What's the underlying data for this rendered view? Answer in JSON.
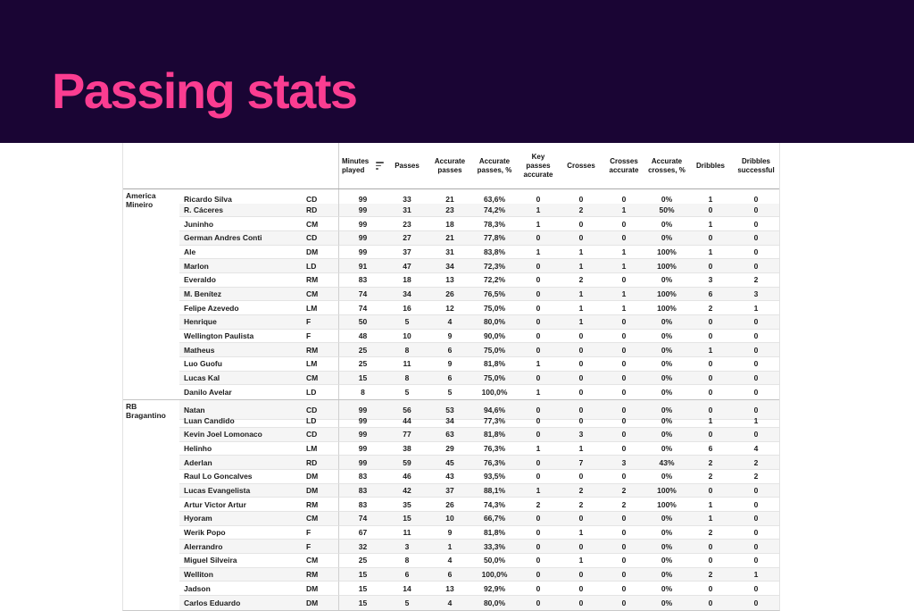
{
  "slide": {
    "title": "Passing stats"
  },
  "colors": {
    "band": "#1a0534",
    "pink": "#fb3d91",
    "row_alt": "#f5f5f5"
  },
  "table": {
    "columns": [
      {
        "label": "Minutes played",
        "sortable": true
      },
      {
        "label": "Passes"
      },
      {
        "label": "Accurate passes"
      },
      {
        "label": "Accurate passes, %"
      },
      {
        "label": "Key passes accurate"
      },
      {
        "label": "Crosses"
      },
      {
        "label": "Crosses accurate"
      },
      {
        "label": "Accurate crosses, %"
      },
      {
        "label": "Dribbles"
      },
      {
        "label": "Dribbles successful"
      }
    ],
    "stat_keys": [
      "minutes-played",
      "passes",
      "accurate-passes",
      "accurate-passes-pct",
      "key-passes-accurate",
      "crosses",
      "crosses-accurate",
      "accurate-crosses-pct",
      "dribbles",
      "dribbles-successful"
    ],
    "groups": [
      {
        "team": "America Mineiro",
        "players": [
          {
            "name": "Ricardo Silva",
            "pos": "CD",
            "stats": [
              "99",
              "33",
              "21",
              "63,6%",
              "0",
              "0",
              "0",
              "0%",
              "1",
              "0"
            ]
          },
          {
            "name": "R. Cáceres",
            "pos": "RD",
            "stats": [
              "99",
              "31",
              "23",
              "74,2%",
              "1",
              "2",
              "1",
              "50%",
              "0",
              "0"
            ]
          },
          {
            "name": "Juninho",
            "pos": "CM",
            "stats": [
              "99",
              "23",
              "18",
              "78,3%",
              "1",
              "0",
              "0",
              "0%",
              "1",
              "0"
            ]
          },
          {
            "name": "German Andres Conti",
            "pos": "CD",
            "stats": [
              "99",
              "27",
              "21",
              "77,8%",
              "0",
              "0",
              "0",
              "0%",
              "0",
              "0"
            ]
          },
          {
            "name": "Ale",
            "pos": "DM",
            "stats": [
              "99",
              "37",
              "31",
              "83,8%",
              "1",
              "1",
              "1",
              "100%",
              "1",
              "0"
            ]
          },
          {
            "name": "Marlon",
            "pos": "LD",
            "stats": [
              "91",
              "47",
              "34",
              "72,3%",
              "0",
              "1",
              "1",
              "100%",
              "0",
              "0"
            ]
          },
          {
            "name": "Everaldo",
            "pos": "RM",
            "stats": [
              "83",
              "18",
              "13",
              "72,2%",
              "0",
              "2",
              "0",
              "0%",
              "3",
              "2"
            ]
          },
          {
            "name": "M. Benítez",
            "pos": "CM",
            "stats": [
              "74",
              "34",
              "26",
              "76,5%",
              "0",
              "1",
              "1",
              "100%",
              "6",
              "3"
            ]
          },
          {
            "name": "Felipe Azevedo",
            "pos": "LM",
            "stats": [
              "74",
              "16",
              "12",
              "75,0%",
              "0",
              "1",
              "1",
              "100%",
              "2",
              "1"
            ]
          },
          {
            "name": "Henrique",
            "pos": "F",
            "stats": [
              "50",
              "5",
              "4",
              "80,0%",
              "0",
              "1",
              "0",
              "0%",
              "0",
              "0"
            ]
          },
          {
            "name": "Wellington Paulista",
            "pos": "F",
            "stats": [
              "48",
              "10",
              "9",
              "90,0%",
              "0",
              "0",
              "0",
              "0%",
              "0",
              "0"
            ]
          },
          {
            "name": "Matheus",
            "pos": "RM",
            "stats": [
              "25",
              "8",
              "6",
              "75,0%",
              "0",
              "0",
              "0",
              "0%",
              "1",
              "0"
            ]
          },
          {
            "name": "Luo Guofu",
            "pos": "LM",
            "stats": [
              "25",
              "11",
              "9",
              "81,8%",
              "1",
              "0",
              "0",
              "0%",
              "0",
              "0"
            ]
          },
          {
            "name": "Lucas Kal",
            "pos": "CM",
            "stats": [
              "15",
              "8",
              "6",
              "75,0%",
              "0",
              "0",
              "0",
              "0%",
              "0",
              "0"
            ]
          },
          {
            "name": "Danilo Avelar",
            "pos": "LD",
            "stats": [
              "8",
              "5",
              "5",
              "100,0%",
              "1",
              "0",
              "0",
              "0%",
              "0",
              "0"
            ]
          }
        ]
      },
      {
        "team": "RB Bragantino",
        "players": [
          {
            "name": "Natan",
            "pos": "CD",
            "stats": [
              "99",
              "56",
              "53",
              "94,6%",
              "0",
              "0",
              "0",
              "0%",
              "0",
              "0"
            ]
          },
          {
            "name": "Luan Candido",
            "pos": "LD",
            "stats": [
              "99",
              "44",
              "34",
              "77,3%",
              "0",
              "0",
              "0",
              "0%",
              "1",
              "1"
            ]
          },
          {
            "name": "Kevin Joel Lomonaco",
            "pos": "CD",
            "stats": [
              "99",
              "77",
              "63",
              "81,8%",
              "0",
              "3",
              "0",
              "0%",
              "0",
              "0"
            ]
          },
          {
            "name": "Helinho",
            "pos": "LM",
            "stats": [
              "99",
              "38",
              "29",
              "76,3%",
              "1",
              "1",
              "0",
              "0%",
              "6",
              "4"
            ]
          },
          {
            "name": "Aderlan",
            "pos": "RD",
            "stats": [
              "99",
              "59",
              "45",
              "76,3%",
              "0",
              "7",
              "3",
              "43%",
              "2",
              "2"
            ]
          },
          {
            "name": "Raul Lo Goncalves",
            "pos": "DM",
            "stats": [
              "83",
              "46",
              "43",
              "93,5%",
              "0",
              "0",
              "0",
              "0%",
              "2",
              "2"
            ]
          },
          {
            "name": "Lucas Evangelista",
            "pos": "DM",
            "stats": [
              "83",
              "42",
              "37",
              "88,1%",
              "1",
              "2",
              "2",
              "100%",
              "0",
              "0"
            ]
          },
          {
            "name": "Artur Victor Artur",
            "pos": "RM",
            "stats": [
              "83",
              "35",
              "26",
              "74,3%",
              "2",
              "2",
              "2",
              "100%",
              "1",
              "0"
            ]
          },
          {
            "name": "Hyoram",
            "pos": "CM",
            "stats": [
              "74",
              "15",
              "10",
              "66,7%",
              "0",
              "0",
              "0",
              "0%",
              "1",
              "0"
            ]
          },
          {
            "name": "Werik Popo",
            "pos": "F",
            "stats": [
              "67",
              "11",
              "9",
              "81,8%",
              "0",
              "1",
              "0",
              "0%",
              "2",
              "0"
            ]
          },
          {
            "name": "Alerrandro",
            "pos": "F",
            "stats": [
              "32",
              "3",
              "1",
              "33,3%",
              "0",
              "0",
              "0",
              "0%",
              "0",
              "0"
            ]
          },
          {
            "name": "Miguel Silveira",
            "pos": "CM",
            "stats": [
              "25",
              "8",
              "4",
              "50,0%",
              "0",
              "1",
              "0",
              "0%",
              "0",
              "0"
            ]
          },
          {
            "name": "Welliton",
            "pos": "RM",
            "stats": [
              "15",
              "6",
              "6",
              "100,0%",
              "0",
              "0",
              "0",
              "0%",
              "2",
              "1"
            ]
          },
          {
            "name": "Jadson",
            "pos": "DM",
            "stats": [
              "15",
              "14",
              "13",
              "92,9%",
              "0",
              "0",
              "0",
              "0%",
              "0",
              "0"
            ]
          },
          {
            "name": "Carlos Eduardo",
            "pos": "DM",
            "stats": [
              "15",
              "5",
              "4",
              "80,0%",
              "0",
              "0",
              "0",
              "0%",
              "0",
              "0"
            ]
          }
        ]
      }
    ]
  }
}
